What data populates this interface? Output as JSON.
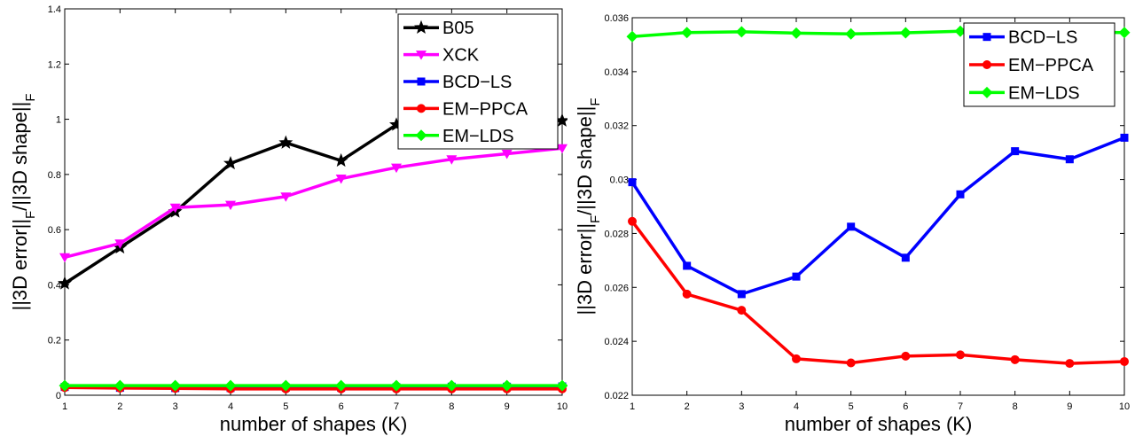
{
  "chart_data": [
    {
      "type": "line",
      "xlabel": "number of shapes (K)",
      "ylabel": "||3D error||_F/||3D shape||_F",
      "xlim": [
        1,
        10
      ],
      "ylim": [
        0,
        1.4
      ],
      "xticks": [
        1,
        2,
        3,
        4,
        5,
        6,
        7,
        8,
        9,
        10
      ],
      "yticks": [
        0,
        0.2,
        0.4,
        0.6,
        0.8,
        1,
        1.2,
        1.4
      ],
      "legend_position": "top-right",
      "x": [
        1,
        2,
        3,
        4,
        5,
        6,
        7,
        8,
        9,
        10
      ],
      "series": [
        {
          "name": "B05",
          "color": "#000000",
          "marker": "star",
          "values": [
            0.405,
            0.535,
            0.665,
            0.84,
            0.915,
            0.85,
            0.98,
            1.0,
            0.995,
            0.995
          ]
        },
        {
          "name": "XCK",
          "color": "#ff00ff",
          "marker": "triangle-down",
          "values": [
            0.5,
            0.55,
            0.68,
            0.69,
            0.72,
            0.785,
            0.825,
            0.855,
            0.875,
            0.895
          ]
        },
        {
          "name": "BCD−LS",
          "color": "#0000ff",
          "marker": "square",
          "values": [
            0.03,
            0.027,
            0.026,
            0.026,
            0.028,
            0.027,
            0.029,
            0.031,
            0.031,
            0.032
          ]
        },
        {
          "name": "EM−PPCA",
          "color": "#ff0000",
          "marker": "circle",
          "values": [
            0.028,
            0.026,
            0.025,
            0.023,
            0.023,
            0.023,
            0.023,
            0.023,
            0.023,
            0.023
          ]
        },
        {
          "name": "EM−LDS",
          "color": "#00ff00",
          "marker": "diamond",
          "values": [
            0.035,
            0.035,
            0.035,
            0.035,
            0.035,
            0.035,
            0.035,
            0.035,
            0.035,
            0.035
          ]
        }
      ]
    },
    {
      "type": "line",
      "xlabel": "number of shapes (K)",
      "ylabel": "||3D error||_F/||3D shape||_F",
      "xlim": [
        1,
        10
      ],
      "ylim": [
        0.022,
        0.036
      ],
      "xticks": [
        1,
        2,
        3,
        4,
        5,
        6,
        7,
        8,
        9,
        10
      ],
      "yticks": [
        0.022,
        0.024,
        0.026,
        0.028,
        0.03,
        0.032,
        0.034,
        0.036
      ],
      "legend_position": "top-right",
      "x": [
        1,
        2,
        3,
        4,
        5,
        6,
        7,
        8,
        9,
        10
      ],
      "series": [
        {
          "name": "BCD−LS",
          "color": "#0000ff",
          "marker": "square",
          "values": [
            0.0299,
            0.0268,
            0.02575,
            0.0264,
            0.02825,
            0.0271,
            0.02945,
            0.03105,
            0.03075,
            0.03155
          ]
        },
        {
          "name": "EM−PPCA",
          "color": "#ff0000",
          "marker": "circle",
          "values": [
            0.02845,
            0.02575,
            0.02515,
            0.02335,
            0.0232,
            0.02345,
            0.0235,
            0.02332,
            0.02318,
            0.02325
          ]
        },
        {
          "name": "EM−LDS",
          "color": "#00ff00",
          "marker": "diamond",
          "values": [
            0.0353,
            0.03545,
            0.03548,
            0.03543,
            0.0354,
            0.03544,
            0.0355,
            0.03546,
            0.03547,
            0.03545
          ]
        }
      ]
    }
  ]
}
